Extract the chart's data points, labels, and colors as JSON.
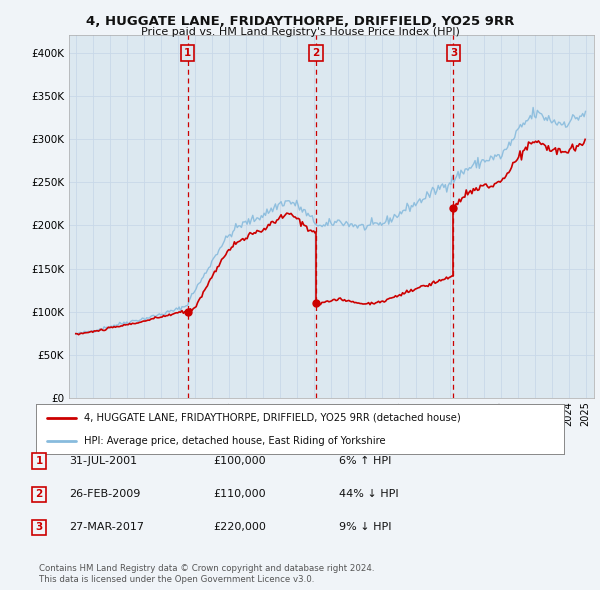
{
  "title": "4, HUGGATE LANE, FRIDAYTHORPE, DRIFFIELD, YO25 9RR",
  "subtitle": "Price paid vs. HM Land Registry's House Price Index (HPI)",
  "legend_line1": "4, HUGGATE LANE, FRIDAYTHORPE, DRIFFIELD, YO25 9RR (detached house)",
  "legend_line2": "HPI: Average price, detached house, East Riding of Yorkshire",
  "transactions": [
    {
      "num": 1,
      "date": "31-JUL-2001",
      "price": "£100,000",
      "change": "6% ↑ HPI",
      "year": 2001.58
    },
    {
      "num": 2,
      "date": "26-FEB-2009",
      "price": "£110,000",
      "change": "44% ↓ HPI",
      "year": 2009.15
    },
    {
      "num": 3,
      "date": "27-MAR-2017",
      "price": "£220,000",
      "change": "9% ↓ HPI",
      "year": 2017.23
    }
  ],
  "footer1": "Contains HM Land Registry data © Crown copyright and database right 2024.",
  "footer2": "This data is licensed under the Open Government Licence v3.0.",
  "price_line_color": "#cc0000",
  "hpi_line_color": "#88bbdd",
  "grid_color": "#c8d8e8",
  "background_color": "#f0f4f8",
  "plot_bg_color": "#dce8f0",
  "vline_color": "#cc0000",
  "marker_box_color": "#cc0000",
  "ylim": [
    0,
    420000
  ],
  "yticks": [
    0,
    50000,
    100000,
    150000,
    200000,
    250000,
    300000,
    350000,
    400000
  ],
  "ytick_labels": [
    "£0",
    "£50K",
    "£100K",
    "£150K",
    "£200K",
    "£250K",
    "£300K",
    "£350K",
    "£400K"
  ],
  "xlim_start": 1994.6,
  "xlim_end": 2025.5
}
